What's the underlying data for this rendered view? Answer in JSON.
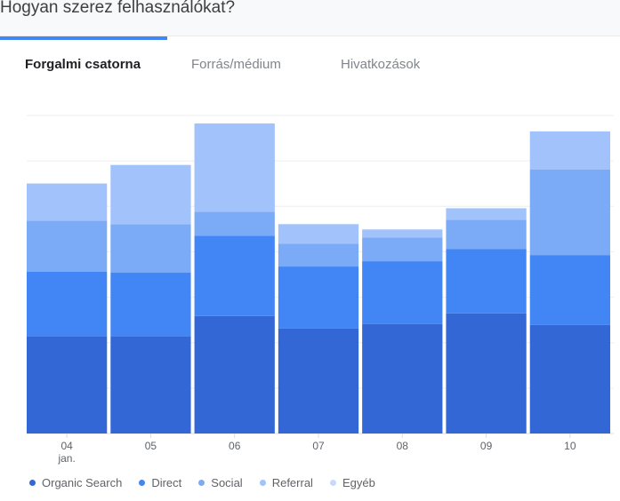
{
  "header": {
    "title": "Hogyan szerez felhasználókat?"
  },
  "tabs": [
    {
      "label": "Forgalmi csatorna",
      "active": true
    },
    {
      "label": "Forrás/médium",
      "active": false
    },
    {
      "label": "Hivatkozások",
      "active": false
    }
  ],
  "chart_data": {
    "type": "bar",
    "stacked": true,
    "categories": [
      "04",
      "05",
      "06",
      "07",
      "08",
      "09",
      "10"
    ],
    "category_sublabels": [
      "jan.",
      "",
      "",
      "",
      "",
      "",
      ""
    ],
    "series": [
      {
        "name": "Organic Search",
        "color": "#3367d6",
        "values": [
          110,
          110,
          133,
          119,
          124,
          136,
          123
        ]
      },
      {
        "name": "Direct",
        "color": "#4285f4",
        "values": [
          73,
          72,
          91,
          70,
          71,
          73,
          79
        ]
      },
      {
        "name": "Social",
        "color": "#7baaf7",
        "values": [
          58,
          55,
          27,
          26,
          27,
          33,
          97
        ]
      },
      {
        "name": "Referral",
        "color": "#a1c2fa",
        "values": [
          42,
          67,
          100,
          22,
          9,
          13,
          43
        ]
      },
      {
        "name": "Egyéb",
        "color": "#c6dafc",
        "values": [
          0,
          0,
          0,
          0,
          0,
          0,
          0
        ]
      }
    ],
    "ylim": [
      0,
      360
    ],
    "grid": true,
    "legend_position": "bottom"
  }
}
